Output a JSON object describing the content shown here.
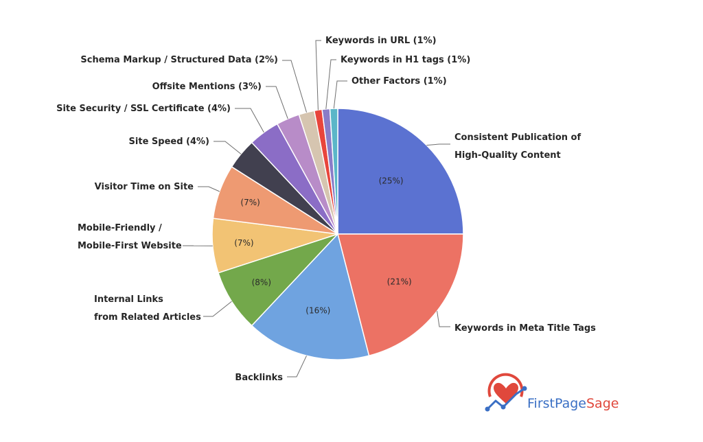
{
  "chart_data": {
    "type": "pie",
    "start": "12 o'clock",
    "direction": "clockwise",
    "slices": [
      {
        "name": "Consistent Publication of High-Quality Content",
        "label_lines": [
          "Consistent Publication of",
          "High-Quality Content"
        ],
        "value": 25,
        "pct_text": "(25%)",
        "color": "#5B72D1"
      },
      {
        "name": "Keywords in Meta Title Tags",
        "label_lines": [
          "Keywords in Meta Title Tags"
        ],
        "value": 21,
        "pct_text": "(21%)",
        "color": "#EC7264"
      },
      {
        "name": "Backlinks",
        "label_lines": [
          "Backlinks"
        ],
        "value": 16,
        "pct_text": "(16%)",
        "color": "#6FA3E0"
      },
      {
        "name": "Internal Links from Related Articles",
        "label_lines": [
          "Internal Links",
          "from Related Articles"
        ],
        "value": 8,
        "pct_text": "(8%)",
        "color": "#73A84B"
      },
      {
        "name": "Mobile-Friendly / Mobile-First Website",
        "label_lines": [
          "Mobile-Friendly /",
          "Mobile-First Website"
        ],
        "value": 7,
        "pct_text": "(7%)",
        "color": "#F2C374"
      },
      {
        "name": "Visitor Time on Site",
        "label_lines": [
          "Visitor Time on Site"
        ],
        "value": 7,
        "pct_text": "(7%)",
        "color": "#EE9A72"
      },
      {
        "name": "Site Speed",
        "label_lines": [
          "Site Speed (4%)"
        ],
        "value": 4,
        "pct_text": "",
        "color": "#41404F"
      },
      {
        "name": "Site Security / SSL Certificate",
        "label_lines": [
          "Site Security / SSL Certificate (4%)"
        ],
        "value": 4,
        "pct_text": "",
        "color": "#8B6DC6"
      },
      {
        "name": "Offsite Mentions",
        "label_lines": [
          "Offsite Mentions (3%)"
        ],
        "value": 3,
        "pct_text": "",
        "color": "#B88CC8"
      },
      {
        "name": "Schema Markup / Structured Data",
        "label_lines": [
          "Schema Markup / Structured Data (2%)"
        ],
        "value": 2,
        "pct_text": "",
        "color": "#D6C5B0"
      },
      {
        "name": "Keywords in URL",
        "label_lines": [
          "Keywords in URL (1%)"
        ],
        "value": 1,
        "pct_text": "",
        "color": "#E8453C"
      },
      {
        "name": "Keywords in H1 tags",
        "label_lines": [
          "Keywords in H1 tags (1%)"
        ],
        "value": 1,
        "pct_text": "",
        "color": "#8A7CC8"
      },
      {
        "name": "Other Factors",
        "label_lines": [
          "Other Factors (1%)"
        ],
        "value": 1,
        "pct_text": "",
        "color": "#5BB6C8"
      }
    ]
  },
  "brand": {
    "name_part1": "FirstPage",
    "name_part2": "Sage",
    "logo_icon": "heart-trend-line-icon",
    "color_primary": "#3A6FC4",
    "color_secondary": "#E0483C"
  }
}
